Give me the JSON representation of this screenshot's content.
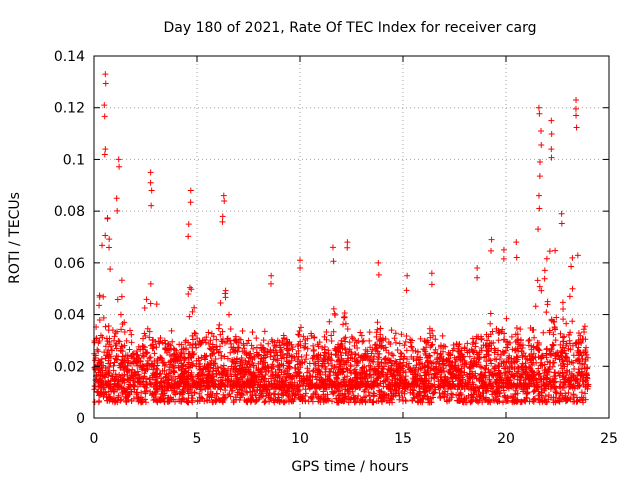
{
  "colors": {
    "series": "#ff0000",
    "grid": "#a0a0a0",
    "axis": "#000000",
    "background": "#ffffff"
  },
  "chart_data": {
    "type": "scatter",
    "title": "Day 180 of 2021, Rate Of TEC Index for receiver carg",
    "xlabel": "GPS time / hours",
    "ylabel": "ROTI / TECUs",
    "xlim": [
      0,
      25
    ],
    "ylim": [
      0,
      0.14
    ],
    "grid": true,
    "marker": "+",
    "xticks": [
      0,
      5,
      10,
      15,
      20,
      25
    ],
    "xtick_labels": [
      "0",
      "5",
      "10",
      "15",
      "20",
      "25"
    ],
    "yticks": [
      0,
      0.02,
      0.04,
      0.06,
      0.08,
      0.1,
      0.12,
      0.14
    ],
    "ytick_labels": [
      "0",
      "0.02",
      "0.04",
      "0.06",
      "0.08",
      "0.1",
      "0.12",
      "0.14"
    ],
    "series": [
      {
        "name": "ROTI",
        "x_range": [
          0,
          24
        ],
        "baseline_min": 0.006,
        "baseline_max": 0.03,
        "peaks": [
          {
            "x": 0.55,
            "y": 0.133
          },
          {
            "x": 0.5,
            "y": 0.121
          },
          {
            "x": 0.55,
            "y": 0.104
          },
          {
            "x": 1.2,
            "y": 0.1
          },
          {
            "x": 1.1,
            "y": 0.085
          },
          {
            "x": 2.75,
            "y": 0.095
          },
          {
            "x": 2.8,
            "y": 0.088
          },
          {
            "x": 4.7,
            "y": 0.088
          },
          {
            "x": 4.6,
            "y": 0.075
          },
          {
            "x": 6.3,
            "y": 0.086
          },
          {
            "x": 6.25,
            "y": 0.078
          },
          {
            "x": 8.6,
            "y": 0.055
          },
          {
            "x": 10.0,
            "y": 0.061
          },
          {
            "x": 11.6,
            "y": 0.066
          },
          {
            "x": 12.3,
            "y": 0.068
          },
          {
            "x": 13.8,
            "y": 0.06
          },
          {
            "x": 15.2,
            "y": 0.055
          },
          {
            "x": 16.4,
            "y": 0.056
          },
          {
            "x": 18.6,
            "y": 0.058
          },
          {
            "x": 19.3,
            "y": 0.069
          },
          {
            "x": 19.9,
            "y": 0.065
          },
          {
            "x": 20.5,
            "y": 0.068
          },
          {
            "x": 21.6,
            "y": 0.12
          },
          {
            "x": 21.7,
            "y": 0.111
          },
          {
            "x": 21.65,
            "y": 0.099
          },
          {
            "x": 21.6,
            "y": 0.086
          },
          {
            "x": 22.2,
            "y": 0.115
          },
          {
            "x": 22.2,
            "y": 0.104
          },
          {
            "x": 22.7,
            "y": 0.079
          },
          {
            "x": 23.4,
            "y": 0.123
          },
          {
            "x": 23.4,
            "y": 0.117
          }
        ]
      }
    ]
  }
}
